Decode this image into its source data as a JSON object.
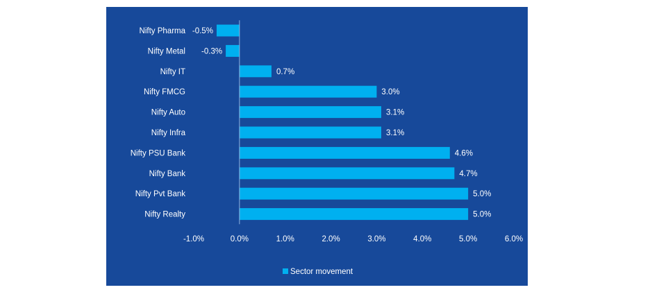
{
  "colors": {
    "panel_background": "#17499a",
    "bar": "#00b0f0",
    "text": "#ffffff",
    "axis": "#8fb3de"
  },
  "chart_data": {
    "type": "bar",
    "orientation": "horizontal",
    "categories": [
      "Nifty Pharma",
      "Nifty Metal",
      "Nifty IT",
      "Nifty FMCG",
      "Nifty Auto",
      "Nifty Infra",
      "Nifty PSU Bank",
      "Nifty Bank",
      "Nifty Pvt Bank",
      "Nifty Realty"
    ],
    "series": [
      {
        "name": "Sector movement",
        "values": [
          -0.5,
          -0.3,
          0.7,
          3.0,
          3.1,
          3.1,
          4.6,
          4.7,
          5.0,
          5.0
        ],
        "labels": [
          "-0.5%",
          "-0.3%",
          "0.7%",
          "3.0%",
          "3.1%",
          "3.1%",
          "4.6%",
          "4.7%",
          "5.0%",
          "5.0%"
        ]
      }
    ],
    "xlim": [
      -1.0,
      6.0
    ],
    "xticks": [
      "-1.0%",
      "0.0%",
      "1.0%",
      "2.0%",
      "3.0%",
      "4.0%",
      "5.0%",
      "6.0%"
    ],
    "title": "",
    "xlabel": "",
    "ylabel": "",
    "grid": false,
    "legend_position": "bottom"
  }
}
